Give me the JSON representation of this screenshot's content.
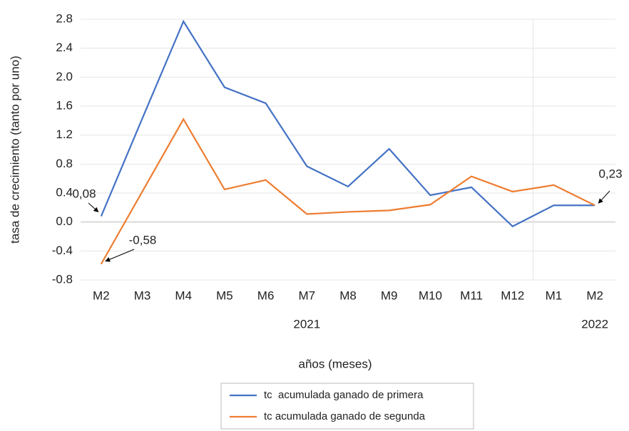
{
  "chart_data": {
    "type": "line",
    "y_axis_label": "tasa de crecimiento (tanto por uno)",
    "x_axis_label": "años (meses)",
    "categories": [
      "M2",
      "M3",
      "M4",
      "M5",
      "M6",
      "M7",
      "M8",
      "M9",
      "M10",
      "M11",
      "M12",
      "M1",
      "M2"
    ],
    "year_labels": [
      {
        "text": "2021",
        "category_index": 5
      },
      {
        "text": "2022",
        "category_index": 12
      }
    ],
    "series": [
      {
        "name": "tc  acumulada ganado de primera",
        "color": "#4472c4",
        "values": [
          0.08,
          1.43,
          2.77,
          1.86,
          1.64,
          0.77,
          0.49,
          1.01,
          0.37,
          0.48,
          -0.06,
          0.23,
          0.23
        ],
        "value_labels": [
          "0,08",
          null,
          null,
          null,
          null,
          null,
          null,
          null,
          null,
          null,
          null,
          null,
          "0,23"
        ]
      },
      {
        "name": "tc acumulada ganado de segunda",
        "color": "#ed7d31",
        "values": [
          -0.58,
          0.42,
          1.42,
          0.45,
          0.58,
          0.11,
          0.14,
          0.16,
          0.24,
          0.63,
          0.42,
          0.51,
          0.23
        ],
        "value_labels": [
          "-0,58",
          null,
          null,
          null,
          null,
          null,
          null,
          null,
          null,
          null,
          null,
          null,
          null
        ]
      }
    ],
    "ylim": [
      -0.8,
      2.8
    ],
    "yticks": [
      2.8,
      2.4,
      {
        "value": 2.0,
        "label": "2.0"
      },
      1.6,
      1.2,
      0.8,
      0.4,
      {
        "value": 0.0,
        "label": "0.0"
      },
      -0.4,
      -0.8
    ],
    "grid": true,
    "legend": "bottom"
  }
}
